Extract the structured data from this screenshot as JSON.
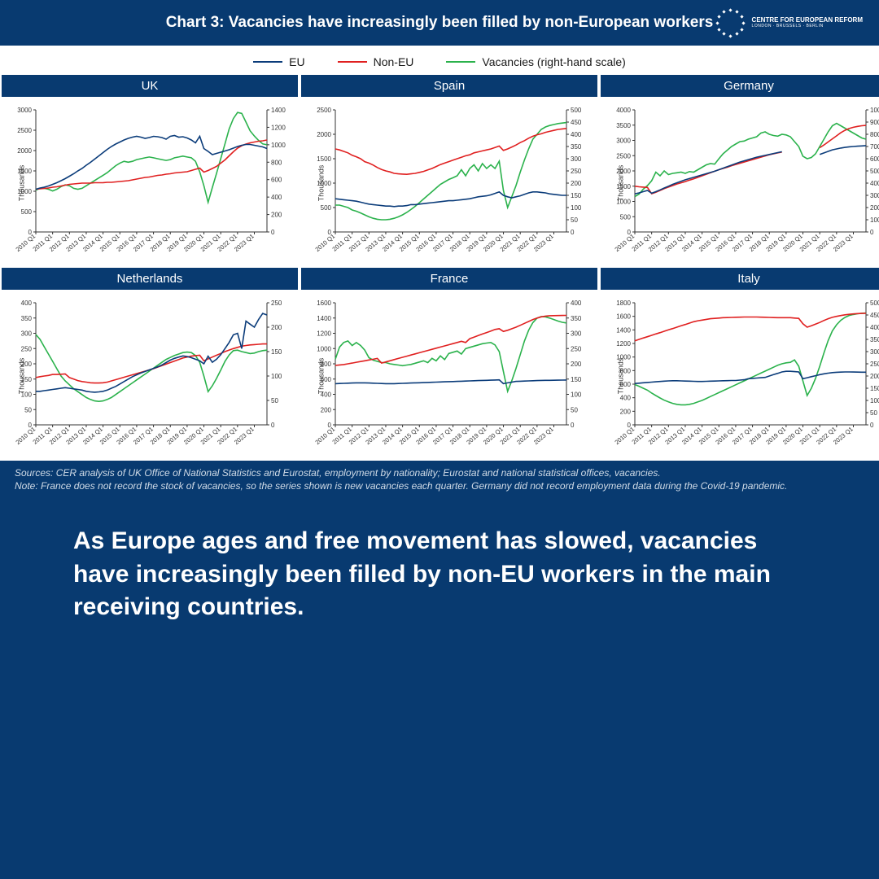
{
  "header": {
    "title": "Chart 3: Vacancies have increasingly been filled by non-European workers",
    "logo_line1": "CENTRE FOR EUROPEAN REFORM",
    "logo_line2": "LONDON · BRUSSELS · BERLIN"
  },
  "legend": {
    "items": [
      {
        "label": "EU",
        "color": "#0b3c7a"
      },
      {
        "label": "Non-EU",
        "color": "#e02020"
      },
      {
        "label": "Vacancies (right-hand scale)",
        "color": "#2bb24c"
      }
    ]
  },
  "global": {
    "background_color": "#083a70",
    "panel_background": "#ffffff",
    "axis_color": "#333333",
    "line_width": 1.6,
    "title_fontsize": 15,
    "axis_fontsize": 8,
    "ylabel": "Thousands",
    "x_labels": [
      "2010 Q1",
      "2011 Q1",
      "2012 Q1",
      "2013 Q1",
      "2014 Q1",
      "2015 Q1",
      "2016 Q1",
      "2017 Q1",
      "2018 Q1",
      "2019 Q1",
      "2020 Q1",
      "2021 Q1",
      "2022 Q1",
      "2023 Q1"
    ],
    "n_points": 56
  },
  "panels": [
    {
      "title": "UK",
      "yl": {
        "min": 0,
        "max": 3000,
        "step": 500
      },
      "yr": {
        "min": 0,
        "max": 1400,
        "step": 200
      },
      "series": {
        "eu": [
          1050,
          1080,
          1100,
          1130,
          1170,
          1210,
          1260,
          1310,
          1370,
          1430,
          1500,
          1560,
          1640,
          1710,
          1790,
          1870,
          1950,
          2030,
          2100,
          2160,
          2210,
          2260,
          2300,
          2330,
          2350,
          2330,
          2300,
          2320,
          2350,
          2340,
          2320,
          2280,
          2350,
          2370,
          2330,
          2340,
          2310,
          2260,
          2190,
          2350,
          2050,
          1980,
          1900,
          1930,
          1960,
          1990,
          2020,
          2060,
          2100,
          2130,
          2150,
          2150,
          2130,
          2110,
          2090,
          2050
        ],
        "noneu": [
          1050,
          1060,
          1070,
          1080,
          1100,
          1110,
          1130,
          1150,
          1170,
          1180,
          1190,
          1200,
          1200,
          1200,
          1210,
          1210,
          1210,
          1220,
          1220,
          1230,
          1240,
          1250,
          1260,
          1280,
          1300,
          1320,
          1340,
          1350,
          1370,
          1390,
          1400,
          1420,
          1430,
          1450,
          1460,
          1470,
          1480,
          1510,
          1540,
          1570,
          1470,
          1510,
          1560,
          1610,
          1690,
          1770,
          1870,
          1970,
          2060,
          2120,
          2160,
          2190,
          2210,
          2230,
          2240,
          2260
        ],
        "vac": [
          480,
          500,
          500,
          490,
          470,
          490,
          520,
          540,
          530,
          500,
          490,
          500,
          530,
          560,
          590,
          620,
          650,
          680,
          720,
          760,
          790,
          810,
          800,
          810,
          830,
          840,
          850,
          860,
          850,
          840,
          830,
          820,
          830,
          850,
          860,
          870,
          860,
          850,
          810,
          690,
          530,
          340,
          510,
          670,
          840,
          1010,
          1180,
          1300,
          1370,
          1360,
          1260,
          1160,
          1100,
          1050,
          1010,
          1000
        ]
      }
    },
    {
      "title": "Spain",
      "yl": {
        "min": 0,
        "max": 2500,
        "step": 500
      },
      "yr": {
        "min": 0,
        "max": 500,
        "step": 50
      },
      "series": {
        "eu": [
          680,
          670,
          660,
          650,
          640,
          630,
          610,
          590,
          570,
          560,
          550,
          540,
          530,
          530,
          520,
          530,
          530,
          540,
          560,
          560,
          570,
          580,
          590,
          600,
          610,
          620,
          630,
          640,
          640,
          650,
          660,
          670,
          680,
          700,
          720,
          730,
          740,
          760,
          790,
          820,
          750,
          720,
          700,
          720,
          740,
          770,
          800,
          820,
          820,
          810,
          800,
          780,
          770,
          760,
          750,
          750
        ],
        "noneu": [
          1700,
          1680,
          1650,
          1620,
          1570,
          1540,
          1500,
          1440,
          1410,
          1370,
          1320,
          1280,
          1250,
          1230,
          1200,
          1190,
          1185,
          1180,
          1190,
          1200,
          1220,
          1240,
          1270,
          1300,
          1340,
          1380,
          1410,
          1440,
          1470,
          1500,
          1530,
          1560,
          1580,
          1620,
          1640,
          1660,
          1680,
          1700,
          1730,
          1760,
          1670,
          1700,
          1740,
          1780,
          1830,
          1870,
          1920,
          1960,
          1990,
          2010,
          2040,
          2060,
          2080,
          2100,
          2110,
          2120
        ],
        "vac": [
          110,
          110,
          105,
          100,
          90,
          85,
          78,
          70,
          62,
          56,
          52,
          50,
          50,
          52,
          56,
          62,
          70,
          80,
          92,
          105,
          120,
          135,
          150,
          165,
          180,
          195,
          205,
          215,
          222,
          230,
          255,
          230,
          260,
          275,
          250,
          280,
          260,
          275,
          260,
          290,
          170,
          100,
          145,
          190,
          245,
          295,
          340,
          380,
          400,
          420,
          430,
          436,
          440,
          444,
          446,
          448
        ]
      }
    },
    {
      "title": "Germany",
      "yl": {
        "min": 0,
        "max": 4000,
        "step": 500
      },
      "yr": {
        "min": 0,
        "max": 1000,
        "step": 100
      },
      "series": {
        "eu": [
          1250,
          1280,
          1320,
          1360,
          1270,
          1320,
          1380,
          1440,
          1500,
          1560,
          1610,
          1660,
          1710,
          1750,
          1790,
          1830,
          1870,
          1910,
          1950,
          1990,
          2040,
          2090,
          2140,
          2190,
          2240,
          2290,
          2330,
          2370,
          2410,
          2450,
          2480,
          2510,
          2540,
          2570,
          2600,
          2630,
          null,
          null,
          null,
          null,
          null,
          null,
          null,
          null,
          2540,
          2590,
          2640,
          2690,
          2720,
          2750,
          2770,
          2790,
          2800,
          2810,
          2820,
          2830
        ],
        "noneu": [
          1500,
          1480,
          1470,
          1460,
          1250,
          1300,
          1360,
          1420,
          1470,
          1520,
          1570,
          1610,
          1650,
          1700,
          1740,
          1790,
          1840,
          1890,
          1940,
          1990,
          2040,
          2080,
          2120,
          2170,
          2210,
          2250,
          2290,
          2330,
          2370,
          2410,
          2450,
          2490,
          2530,
          2560,
          2590,
          2620,
          null,
          null,
          null,
          null,
          null,
          null,
          null,
          null,
          2760,
          2850,
          2950,
          3050,
          3150,
          3250,
          3330,
          3390,
          3430,
          3460,
          3480,
          3490
        ],
        "vac": [
          290,
          310,
          350,
          380,
          420,
          490,
          460,
          500,
          470,
          480,
          485,
          490,
          480,
          495,
          490,
          510,
          530,
          550,
          560,
          555,
          600,
          640,
          670,
          700,
          720,
          740,
          745,
          760,
          770,
          780,
          810,
          820,
          800,
          790,
          785,
          800,
          795,
          780,
          740,
          700,
          620,
          600,
          610,
          640,
          700,
          760,
          820,
          870,
          890,
          870,
          850,
          830,
          810,
          790,
          770,
          760
        ]
      }
    },
    {
      "title": "Netherlands",
      "yl": {
        "min": 0,
        "max": 400,
        "step": 50
      },
      "yr": {
        "min": 0,
        "max": 250,
        "step": 50
      },
      "series": {
        "eu": [
          110,
          110,
          112,
          114,
          116,
          118,
          120,
          122,
          120,
          118,
          116,
          114,
          110,
          108,
          107,
          108,
          110,
          114,
          120,
          126,
          134,
          142,
          150,
          158,
          164,
          170,
          175,
          180,
          185,
          190,
          196,
          204,
          212,
          218,
          222,
          226,
          224,
          220,
          215,
          210,
          200,
          225,
          205,
          215,
          230,
          250,
          270,
          295,
          300,
          250,
          340,
          330,
          320,
          345,
          365,
          360
        ],
        "noneu": [
          155,
          158,
          160,
          162,
          165,
          165,
          166,
          167,
          155,
          150,
          145,
          142,
          140,
          138,
          137,
          137,
          138,
          140,
          144,
          148,
          152,
          156,
          160,
          164,
          168,
          172,
          176,
          180,
          184,
          189,
          194,
          199,
          204,
          209,
          214,
          219,
          222,
          225,
          227,
          228,
          210,
          216,
          222,
          228,
          234,
          240,
          245,
          250,
          254,
          258,
          260,
          262,
          263,
          264,
          265,
          265
        ],
        "vac": [
          185,
          175,
          160,
          145,
          130,
          115,
          100,
          90,
          82,
          74,
          68,
          62,
          56,
          52,
          49,
          48,
          49,
          52,
          56,
          62,
          68,
          74,
          80,
          86,
          92,
          98,
          104,
          110,
          116,
          122,
          128,
          134,
          138,
          142,
          145,
          148,
          149,
          148,
          142,
          128,
          100,
          68,
          80,
          95,
          112,
          130,
          143,
          152,
          153,
          150,
          148,
          146,
          147,
          150,
          152,
          153
        ]
      }
    },
    {
      "title": "France",
      "yl": {
        "min": 0,
        "max": 1600,
        "step": 200
      },
      "yr": {
        "min": 0,
        "max": 400,
        "step": 50
      },
      "series": {
        "eu": [
          540,
          542,
          544,
          546,
          548,
          550,
          550,
          550,
          548,
          546,
          544,
          542,
          540,
          540,
          540,
          542,
          544,
          546,
          548,
          550,
          552,
          554,
          556,
          558,
          560,
          562,
          564,
          566,
          568,
          570,
          572,
          574,
          576,
          578,
          580,
          582,
          584,
          586,
          588,
          590,
          540,
          550,
          560,
          570,
          572,
          574,
          576,
          578,
          580,
          582,
          583,
          584,
          585,
          586,
          587,
          588
        ],
        "noneu": [
          780,
          785,
          790,
          800,
          810,
          820,
          830,
          840,
          850,
          860,
          870,
          810,
          825,
          840,
          855,
          870,
          885,
          900,
          915,
          930,
          945,
          960,
          975,
          990,
          1005,
          1020,
          1035,
          1050,
          1065,
          1080,
          1095,
          1080,
          1130,
          1150,
          1170,
          1190,
          1210,
          1230,
          1250,
          1260,
          1225,
          1240,
          1260,
          1280,
          1305,
          1330,
          1355,
          1380,
          1400,
          1415,
          1425,
          1430,
          1432,
          1433,
          1434,
          1435
        ],
        "vac": [
          215,
          255,
          270,
          275,
          260,
          270,
          260,
          245,
          220,
          212,
          208,
          204,
          204,
          200,
          198,
          196,
          194,
          196,
          198,
          202,
          206,
          210,
          204,
          218,
          210,
          226,
          214,
          234,
          238,
          242,
          232,
          250,
          254,
          258,
          262,
          266,
          268,
          270,
          262,
          240,
          175,
          110,
          145,
          185,
          230,
          275,
          310,
          335,
          350,
          355,
          354,
          350,
          345,
          340,
          336,
          334
        ]
      }
    },
    {
      "title": "Italy",
      "yl": {
        "min": 0,
        "max": 1800,
        "step": 200
      },
      "yr": {
        "min": 0,
        "max": 500,
        "step": 50
      },
      "series": {
        "eu": [
          610,
          615,
          620,
          625,
          630,
          635,
          640,
          645,
          648,
          650,
          650,
          648,
          646,
          644,
          642,
          640,
          640,
          642,
          644,
          646,
          648,
          650,
          652,
          654,
          654,
          660,
          665,
          680,
          685,
          690,
          695,
          700,
          720,
          740,
          760,
          780,
          790,
          790,
          785,
          780,
          680,
          695,
          710,
          725,
          740,
          752,
          762,
          770,
          775,
          778,
          780,
          780,
          779,
          778,
          777,
          776
        ],
        "noneu": [
          1240,
          1260,
          1280,
          1300,
          1320,
          1340,
          1360,
          1380,
          1400,
          1420,
          1440,
          1460,
          1480,
          1500,
          1520,
          1535,
          1545,
          1555,
          1565,
          1570,
          1575,
          1580,
          1582,
          1584,
          1586,
          1588,
          1590,
          1590,
          1590,
          1590,
          1588,
          1586,
          1584,
          1582,
          1580,
          1580,
          1580,
          1580,
          1575,
          1570,
          1490,
          1440,
          1460,
          1485,
          1510,
          1540,
          1565,
          1585,
          1600,
          1612,
          1622,
          1630,
          1636,
          1640,
          1643,
          1645
        ],
        "vac": [
          165,
          158,
          150,
          142,
          130,
          120,
          110,
          101,
          94,
          88,
          84,
          82,
          82,
          84,
          88,
          94,
          100,
          108,
          116,
          124,
          132,
          140,
          148,
          156,
          164,
          172,
          180,
          188,
          196,
          204,
          212,
          220,
          228,
          236,
          244,
          250,
          254,
          256,
          266,
          240,
          180,
          120,
          150,
          190,
          240,
          295,
          345,
          385,
          410,
          428,
          440,
          448,
          452,
          455,
          457,
          458
        ]
      }
    }
  ],
  "sources": {
    "line1": "Sources: CER analysis of UK Office of National Statistics and Eurostat, employment by nationality; Eurostat and national statistical offices, vacancies.",
    "line2": "Note: France does not record the stock of vacancies, so the series shown is new vacancies each quarter. Germany did not record employment data during the Covid-19 pandemic."
  },
  "takeaway": "As Europe ages and free movement has slowed, vacancies have increasingly been filled by non-EU workers in the main receiving countries."
}
